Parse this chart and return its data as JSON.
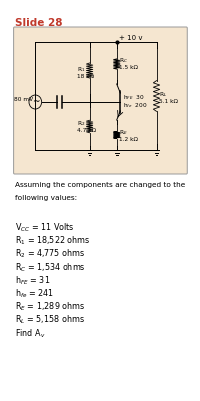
{
  "title": "Slide 28",
  "title_color": "#c0392b",
  "circuit_bg": "#f5e6d0",
  "page_bg": "#ffffff",
  "vcc_label": "+ 10 v",
  "input_label": "80 mV"
}
